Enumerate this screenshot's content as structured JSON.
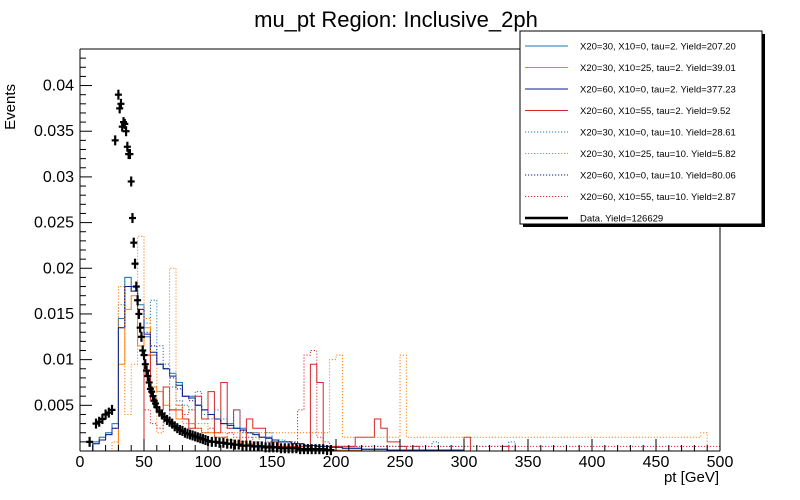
{
  "chart_data": {
    "type": "line",
    "title": "mu_pt Region: Inclusive_2ph",
    "xlabel": "pt [GeV]",
    "ylabel": "Events",
    "xlim": [
      0,
      500
    ],
    "ylim": [
      0,
      0.044
    ],
    "x_ticks": [
      0,
      50,
      100,
      150,
      200,
      250,
      300,
      350,
      400,
      450,
      500
    ],
    "x_tick_labels": [
      "0",
      "50",
      "100",
      "150",
      "200",
      "250",
      "300",
      "350",
      "400",
      "450",
      "500"
    ],
    "y_ticks": [
      0.005,
      0.01,
      0.015,
      0.02,
      0.025,
      0.03,
      0.035,
      0.04
    ],
    "y_tick_labels": [
      "0.005",
      "0.01",
      "0.015",
      "0.02",
      "0.025",
      "0.03",
      "0.035",
      "0.04"
    ],
    "grid": false,
    "legend_position": "top-right",
    "bin_width": 5,
    "bin_start": 10,
    "series": [
      {
        "name": "X20=30, X10=0, tau=2. Yield=207.20",
        "color": "#1f77b4",
        "style": "solid",
        "values": [
          0.001,
          0.0015,
          0.002,
          0.003,
          0.0145,
          0.019,
          0.018,
          0.016,
          0.0125,
          0.0105,
          0.0095,
          0.009,
          0.0085,
          0.0075,
          0.006,
          0.006,
          0.005,
          0.0045,
          0.004,
          0.0035,
          0.003,
          0.003,
          0.0025,
          0.0025,
          0.002,
          0.002,
          0.0015,
          0.0015,
          0.0012,
          0.001,
          0.001,
          0.0008,
          0.0008,
          0.0006,
          0.0006,
          0.0005,
          0.0005,
          0.0004,
          0.0004,
          0.0003,
          0.0003,
          0.0003,
          0.0002,
          0.0002,
          0.0002,
          0.0002,
          0.0001,
          0.0001,
          0.0001,
          0.0001,
          0.0001,
          0.0001,
          0.0001,
          0.0001,
          0.0001,
          0.0001,
          0.0001,
          0.0001,
          0,
          0,
          0,
          0,
          0,
          0,
          0,
          0,
          0,
          0,
          0,
          0,
          0,
          0,
          0,
          0,
          0,
          0,
          0,
          0,
          0,
          0,
          0,
          0,
          0,
          0,
          0,
          0,
          0,
          0,
          0,
          0,
          0,
          0,
          0,
          0,
          0,
          0,
          0,
          0
        ]
      },
      {
        "name": "X20=30, X10=25, tau=2. Yield=39.01",
        "color": "#ff7f0e",
        "style": "solid",
        "values": [
          0,
          0,
          0,
          0,
          0.0095,
          0.0155,
          0.017,
          0.0115,
          0.0135,
          0.007,
          0.0065,
          0.005,
          0.0045,
          0.0035,
          0.0035,
          0.003,
          0.0025,
          0.002,
          0.002,
          0.0015,
          0.0015,
          0.0012,
          0.001,
          0.001,
          0.0008,
          0.0008,
          0.0006,
          0.0006,
          0.0005,
          0.0005,
          0.0004,
          0.0004,
          0.0003,
          0.0003,
          0.0002,
          0.0002,
          0.0002,
          0.0001,
          0.0001,
          0.0001,
          0.0001,
          0.0001,
          0,
          0,
          0,
          0,
          0,
          0,
          0,
          0,
          0,
          0,
          0,
          0,
          0,
          0,
          0,
          0,
          0,
          0,
          0,
          0,
          0,
          0,
          0,
          0,
          0,
          0,
          0,
          0,
          0,
          0,
          0,
          0,
          0,
          0,
          0,
          0,
          0,
          0,
          0,
          0,
          0,
          0,
          0,
          0,
          0,
          0,
          0,
          0,
          0,
          0,
          0,
          0,
          0,
          0,
          0,
          0
        ]
      },
      {
        "name": "X20=60, X10=0, tau=2. Yield=377.23",
        "color": "#0a1f8f",
        "style": "solid",
        "values": [
          0.0008,
          0.0012,
          0.0018,
          0.0025,
          0.0135,
          0.018,
          0.0175,
          0.0155,
          0.0128,
          0.0108,
          0.0095,
          0.009,
          0.0082,
          0.0072,
          0.006,
          0.0058,
          0.005,
          0.0045,
          0.004,
          0.0035,
          0.003,
          0.0028,
          0.0025,
          0.0023,
          0.002,
          0.0018,
          0.0015,
          0.0014,
          0.0012,
          0.001,
          0.001,
          0.0008,
          0.0008,
          0.0006,
          0.0006,
          0.0005,
          0.0005,
          0.0004,
          0.0004,
          0.0003,
          0.0003,
          0.0003,
          0.0002,
          0.0002,
          0.0002,
          0.0002,
          0.0001,
          0.0001,
          0.0001,
          0.0001,
          0.0001,
          0.0001,
          0.0001,
          0.0001,
          0.0001,
          0.0001,
          0.0001,
          0.0001,
          0,
          0,
          0,
          0,
          0,
          0,
          0,
          0,
          0,
          0,
          0,
          0,
          0,
          0,
          0,
          0,
          0,
          0,
          0,
          0,
          0,
          0,
          0,
          0,
          0,
          0,
          0,
          0,
          0,
          0,
          0,
          0,
          0,
          0,
          0,
          0,
          0,
          0,
          0,
          0
        ]
      },
      {
        "name": "X20=60, X10=55, tau=2. Yield=9.52",
        "color": "#d62728",
        "style": "solid",
        "values": [
          0,
          0,
          0,
          0,
          0,
          0,
          0,
          0,
          0.0105,
          0.0055,
          0.0045,
          0.007,
          0.0045,
          0.0045,
          0.0035,
          0.0025,
          0.006,
          0.0035,
          0.0065,
          0.002,
          0.0075,
          0.0025,
          0.0045,
          0.0005,
          0.0035,
          0.0025,
          0.0025,
          0.0005,
          0.001,
          0.0005,
          0.0005,
          0.0005,
          0.0005,
          0.0005,
          0.0095,
          0.0075,
          0,
          0.0005,
          0.0005,
          0.0005,
          0.0005,
          0.0015,
          0.0015,
          0.0015,
          0.0035,
          0.0025,
          0.001,
          0.001,
          0.0005,
          0,
          0.0005,
          0,
          0,
          0,
          0,
          0,
          0,
          0,
          0.0015,
          0,
          0,
          0,
          0,
          0,
          0.0005,
          0,
          0,
          0,
          0,
          0,
          0,
          0,
          0,
          0,
          0,
          0,
          0,
          0,
          0,
          0,
          0,
          0,
          0,
          0,
          0,
          0,
          0,
          0,
          0,
          0,
          0,
          0,
          0,
          0,
          0,
          0,
          0,
          0
        ]
      },
      {
        "name": "X20=30, X10=0, tau=10. Yield=28.61",
        "color": "#1f77b4",
        "style": "dotted",
        "values": [
          0.001,
          0.0015,
          0.002,
          0.003,
          0.016,
          0.019,
          0.018,
          0.015,
          0.014,
          0.0165,
          0.0115,
          0.0095,
          0.007,
          0.0055,
          0.005,
          0.0045,
          0.0065,
          0.004,
          0.0035,
          0.0045,
          0.0035,
          0.0025,
          0.0045,
          0.002,
          0.002,
          0.0015,
          0.0015,
          0.002,
          0.001,
          0.0012,
          0.001,
          0.001,
          0.0008,
          0.0005,
          0.0005,
          0.0005,
          0.0005,
          0.0005,
          0.0005,
          0.0005,
          0.0005,
          0.0005,
          0.0005,
          0.0005,
          0.0005,
          0.0005,
          0.0005,
          0.0005,
          0.0005,
          0.0005,
          0.0005,
          0.0005,
          0.0005,
          0.001,
          0.0005,
          0.0005,
          0.0005,
          0.0005,
          0.0005,
          0.0005,
          0.0005,
          0.0005,
          0.0005,
          0.0005,
          0.0005,
          0.001,
          0,
          0,
          0,
          0,
          0,
          0,
          0,
          0,
          0,
          0,
          0,
          0,
          0,
          0,
          0,
          0,
          0,
          0,
          0,
          0,
          0,
          0,
          0,
          0,
          0,
          0,
          0,
          0,
          0,
          0,
          0,
          0
        ]
      },
      {
        "name": "X20=30, X10=25, tau=10. Yield=5.82",
        "color": "#ff7f0e",
        "style": "dotted",
        "values": [
          0,
          0,
          0,
          0.001,
          0.018,
          0.004,
          0.0095,
          0.0235,
          0.0145,
          0.0105,
          0.002,
          0.003,
          0.02,
          0.005,
          0.003,
          0.003,
          0.003,
          0.003,
          0.002,
          0.002,
          0.002,
          0.002,
          0.002,
          0.002,
          0.002,
          0.002,
          0.002,
          0.002,
          0.002,
          0.002,
          0.002,
          0.002,
          0.002,
          0.002,
          0.002,
          0.002,
          0.002,
          0.01,
          0.0105,
          0.0015,
          0.0015,
          0.0015,
          0.0015,
          0.0015,
          0.0015,
          0.0015,
          0.0015,
          0.0015,
          0.0105,
          0.0015,
          0.0015,
          0.0015,
          0.0015,
          0.0015,
          0.0015,
          0.0015,
          0.0015,
          0.0015,
          0.0015,
          0.0015,
          0.0015,
          0.0015,
          0.0015,
          0.0015,
          0.0015,
          0.0015,
          0.0015,
          0.0015,
          0.0015,
          0.0015,
          0.0015,
          0.0015,
          0.0015,
          0.0015,
          0.0015,
          0.0015,
          0.0015,
          0.0015,
          0.0015,
          0.0015,
          0.0015,
          0.0015,
          0.0015,
          0.0015,
          0.0015,
          0.0015,
          0.0015,
          0.0015,
          0.0015,
          0.0015,
          0.0015,
          0.0015,
          0.0015,
          0.0015,
          0.0015,
          0.002,
          0
        ]
      },
      {
        "name": "X20=60, X10=0, tau=10. Yield=80.06",
        "color": "#0a1f8f",
        "style": "dotted",
        "values": [
          0.0008,
          0.0012,
          0.0018,
          0.0025,
          0.0135,
          0.018,
          0.0175,
          0.0155,
          0.013,
          0.0115,
          0.0095,
          0.009,
          0.008,
          0.0068,
          0.006,
          0.0055,
          0.005,
          0.0045,
          0.004,
          0.0035,
          0.003,
          0.0028,
          0.0025,
          0.0022,
          0.002,
          0.0018,
          0.0015,
          0.0014,
          0.0012,
          0.001,
          0.001,
          0.0009,
          0.0008,
          0.0007,
          0.0006,
          0.0005,
          0.0005,
          0.0004,
          0.0004,
          0.0003,
          0.0003,
          0.0003,
          0.0002,
          0.0002,
          0.0002,
          0.0002,
          0.0001,
          0.0001,
          0.0001,
          0.0001,
          0.0001,
          0.0001,
          0.0001,
          0.0001,
          0.0001,
          0.0001,
          0.0001,
          0.0001,
          0,
          0,
          0,
          0,
          0,
          0,
          0,
          0,
          0,
          0,
          0,
          0,
          0,
          0,
          0,
          0,
          0,
          0,
          0,
          0,
          0,
          0,
          0,
          0,
          0,
          0,
          0,
          0,
          0,
          0,
          0,
          0,
          0,
          0,
          0,
          0,
          0,
          0,
          0,
          0
        ]
      },
      {
        "name": "X20=60, X10=55, tau=10. Yield=2.87",
        "color": "#d62728",
        "style": "dotted",
        "values": [
          0,
          0,
          0,
          0,
          0,
          0,
          0,
          0,
          0.0045,
          0.003,
          0.0025,
          0.0035,
          0.0045,
          0.005,
          0.004,
          0.0045,
          0.0025,
          0.002,
          0.0025,
          0.0015,
          0.0015,
          0.002,
          0.0015,
          0.0015,
          0.0015,
          0.001,
          0.0015,
          0.001,
          0.001,
          0.0005,
          0.0005,
          0.001,
          0.0045,
          0.0105,
          0.011,
          0.0015,
          0.001,
          0.0005,
          0.0005,
          0.0005,
          0.0005,
          0.0005,
          0.0005,
          0.0005,
          0.0005,
          0.0005,
          0.0005,
          0.0005,
          0.0005,
          0.0005,
          0.0005,
          0.0005,
          0.0005,
          0.0005,
          0.0005,
          0.0005,
          0.0005,
          0.0005,
          0.0005,
          0.0005,
          0.0005,
          0.0005,
          0.0005,
          0.0005,
          0.0005,
          0.0005,
          0.0005,
          0.0005,
          0.0005,
          0.0005,
          0.0005,
          0.0005,
          0.0005,
          0.0005,
          0.0005,
          0.0005,
          0.0005,
          0.0005,
          0.0005,
          0.0005,
          0.0005,
          0.0005,
          0.0005,
          0.0005,
          0.0005,
          0.0005,
          0.0005,
          0.0005,
          0.0005,
          0.0005,
          0.0005,
          0.0005,
          0.0005,
          0.0005,
          0.0005,
          0.0005,
          0.0005,
          0.0005
        ]
      }
    ],
    "data_series": {
      "name": "Data. Yield=126629",
      "color": "#000000",
      "x": [
        7.5,
        12.5,
        15,
        17.5,
        20,
        22.5,
        25,
        27.5,
        30,
        31,
        32,
        33,
        34,
        35,
        36,
        37,
        38,
        39,
        40,
        41,
        42,
        43,
        44,
        45,
        46,
        47,
        48,
        49,
        50,
        51,
        52,
        53,
        54,
        55,
        56,
        57,
        58,
        59,
        60,
        62,
        64,
        66,
        68,
        70,
        72,
        74,
        76,
        78,
        80,
        82,
        84,
        86,
        88,
        90,
        92,
        94,
        96,
        98,
        100,
        103,
        106,
        109,
        112,
        115,
        118,
        121,
        124,
        127,
        130,
        133,
        136,
        139,
        142,
        145,
        148,
        151,
        154,
        157,
        160,
        163,
        166,
        169,
        172,
        175,
        178,
        181,
        184,
        187,
        190,
        193,
        196
      ],
      "y": [
        0.001,
        0.003,
        0.0032,
        0.0035,
        0.004,
        0.0042,
        0.0045,
        0.034,
        0.039,
        0.0375,
        0.038,
        0.0355,
        0.036,
        0.0358,
        0.035,
        0.0333,
        0.0325,
        0.0325,
        0.0295,
        0.0255,
        0.0228,
        0.0205,
        0.018,
        0.0165,
        0.015,
        0.0135,
        0.0125,
        0.011,
        0.0105,
        0.0095,
        0.0088,
        0.0082,
        0.0075,
        0.0068,
        0.0065,
        0.006,
        0.0055,
        0.0052,
        0.0048,
        0.0043,
        0.004,
        0.0037,
        0.0034,
        0.0032,
        0.003,
        0.0027,
        0.0025,
        0.0023,
        0.0022,
        0.002,
        0.0019,
        0.0018,
        0.0017,
        0.0016,
        0.0015,
        0.0014,
        0.0013,
        0.0012,
        0.0011,
        0.001,
        0.001,
        0.0009,
        0.0009,
        0.0008,
        0.0008,
        0.0007,
        0.0007,
        0.0006,
        0.0006,
        0.0006,
        0.0005,
        0.0005,
        0.0005,
        0.0004,
        0.0004,
        0.0004,
        0.0004,
        0.0003,
        0.0003,
        0.0003,
        0.0003,
        0.0003,
        0.0002,
        0.0002,
        0.0002,
        0.0002,
        0.0002,
        0.0002,
        0.0002,
        0.0001,
        0.0001
      ]
    }
  }
}
